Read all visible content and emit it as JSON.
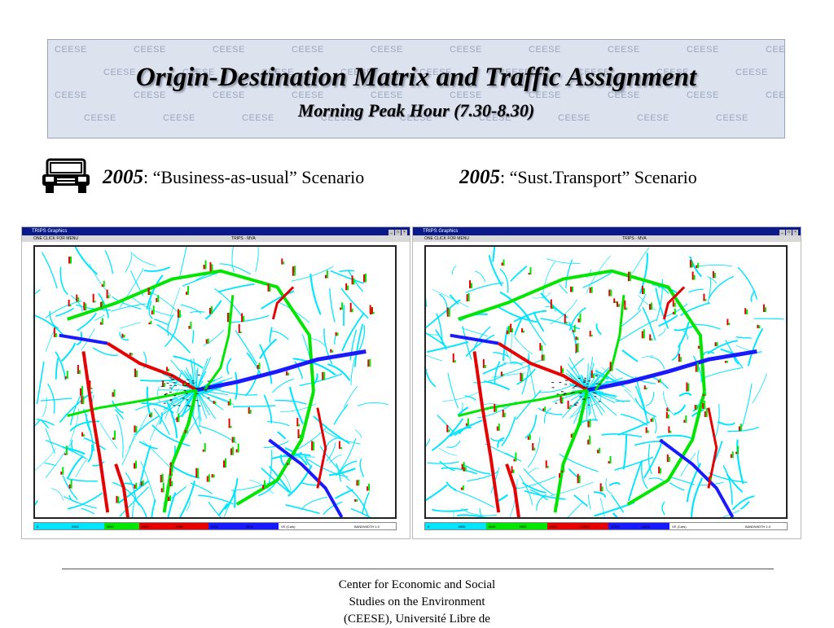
{
  "header": {
    "title": "Origin-Destination Matrix and Traffic Assignment",
    "subtitle": "Morning Peak Hour (7.30-8.30)",
    "watermark": "CEESE"
  },
  "scenarios": [
    {
      "year": "2005",
      "label": ": “Business-as-usual” Scenario"
    },
    {
      "year": "2005",
      "label": ": “Sust.Transport” Scenario"
    }
  ],
  "maps": [
    {
      "window_title": "TRIPS Graphics",
      "menu_text": "ONE CLICK FOR MENU",
      "view_title": "TRIPS - MVA",
      "legend": [
        "0",
        "2000",
        "3000",
        "4000",
        "5000",
        "6000",
        "8000",
        "VE (Cars)",
        "BANDWIDTH 1.0"
      ],
      "legend_colors": [
        "#00e5ff",
        "#00e5ff",
        "#00e600",
        "#e60000",
        "#e60000",
        "#1a1aff",
        "#1a1aff"
      ]
    },
    {
      "window_title": "TRIPS Graphics",
      "menu_text": "ONE CLICK FOR MENU",
      "view_title": "TRIPS - MVA",
      "legend": [
        "0",
        "4000",
        "6001",
        "8000",
        "8001",
        "12000",
        "12001",
        "16000",
        "VE (Cars)",
        "BANDWIDTH 1.0"
      ],
      "legend_colors": [
        "#00e5ff",
        "#00e5ff",
        "#00e600",
        "#00e600",
        "#e60000",
        "#e60000",
        "#1a1aff",
        "#1a1aff"
      ]
    }
  ],
  "icons": {
    "car": "car-front-icon"
  },
  "colors": {
    "link_base": "#00e5ff",
    "flow_low": "#00e600",
    "flow_mid": "#e60000",
    "flow_high": "#1a1aff"
  },
  "footer": {
    "lines": [
      "Center for Economic and Social",
      "Studies on the Environment",
      "(CEESE), Université Libre de"
    ]
  }
}
